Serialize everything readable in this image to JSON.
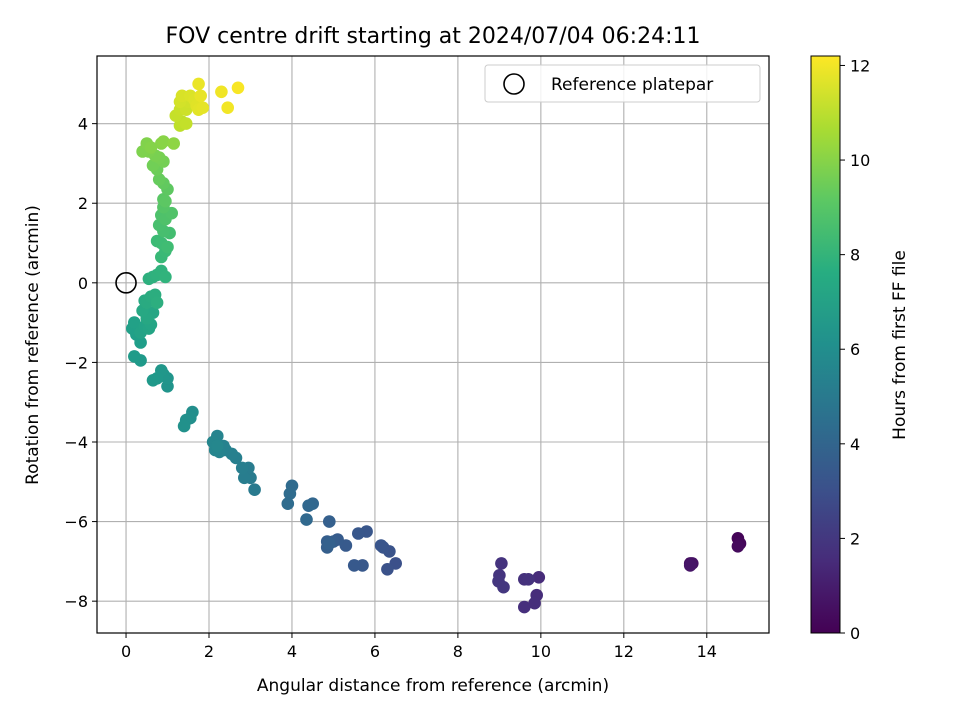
{
  "chart_data": {
    "type": "scatter",
    "title": "FOV centre drift starting at 2024/07/04 06:24:11",
    "xlabel": "Angular distance from reference (arcmin)",
    "ylabel": "Rotation from reference (arcmin)",
    "xlim": [
      -0.7,
      15.5
    ],
    "ylim": [
      -8.8,
      5.7
    ],
    "xticks": [
      0,
      2,
      4,
      6,
      8,
      10,
      12,
      14
    ],
    "yticks": [
      -8,
      -6,
      -4,
      -2,
      0,
      2,
      4
    ],
    "grid": true,
    "legend": {
      "placement": "top-right",
      "entries": [
        {
          "label": "Reference platepar",
          "marker": "open-circle"
        }
      ]
    },
    "reference": {
      "x": 0,
      "y": 0
    },
    "colorbar": {
      "label": "Hours from first FF file",
      "colormap": "viridis",
      "range": [
        0,
        12.2
      ],
      "ticks": [
        0,
        2,
        4,
        6,
        8,
        10,
        12
      ]
    },
    "points": [
      [
        14.75,
        -6.42,
        0.1
      ],
      [
        14.8,
        -6.55,
        0.2
      ],
      [
        14.75,
        -6.62,
        0.3
      ],
      [
        13.6,
        -7.05,
        0.5
      ],
      [
        13.65,
        -7.05,
        0.6
      ],
      [
        13.6,
        -7.1,
        0.7
      ],
      [
        9.95,
        -7.4,
        1.5
      ],
      [
        9.9,
        -7.85,
        1.55
      ],
      [
        9.85,
        -8.05,
        1.6
      ],
      [
        9.6,
        -8.15,
        1.65
      ],
      [
        9.6,
        -7.45,
        1.7
      ],
      [
        9.7,
        -7.45,
        1.75
      ],
      [
        9.05,
        -7.05,
        1.8
      ],
      [
        9.0,
        -7.35,
        1.85
      ],
      [
        8.98,
        -7.5,
        1.9
      ],
      [
        9.1,
        -7.65,
        1.95
      ],
      [
        6.5,
        -7.05,
        3.0
      ],
      [
        6.3,
        -7.2,
        3.05
      ],
      [
        6.35,
        -6.75,
        3.1
      ],
      [
        6.2,
        -6.65,
        3.15
      ],
      [
        6.15,
        -6.6,
        3.2
      ],
      [
        5.8,
        -6.25,
        3.25
      ],
      [
        5.6,
        -6.3,
        3.3
      ],
      [
        5.7,
        -7.1,
        3.35
      ],
      [
        5.5,
        -7.1,
        3.4
      ],
      [
        5.3,
        -6.6,
        3.45
      ],
      [
        5.1,
        -6.45,
        3.5
      ],
      [
        5.0,
        -6.5,
        3.55
      ],
      [
        4.85,
        -6.5,
        3.6
      ],
      [
        4.85,
        -6.65,
        3.65
      ],
      [
        4.9,
        -6.0,
        3.7
      ],
      [
        4.9,
        -6.55,
        3.75
      ],
      [
        4.5,
        -5.55,
        4.0
      ],
      [
        4.4,
        -5.6,
        4.05
      ],
      [
        4.35,
        -5.95,
        4.1
      ],
      [
        4.0,
        -5.1,
        4.2
      ],
      [
        3.95,
        -5.3,
        4.25
      ],
      [
        3.9,
        -5.55,
        4.3
      ],
      [
        3.1,
        -5.2,
        5.0
      ],
      [
        3.0,
        -4.9,
        5.05
      ],
      [
        2.95,
        -4.65,
        5.1
      ],
      [
        2.85,
        -4.9,
        5.15
      ],
      [
        2.8,
        -4.65,
        5.2
      ],
      [
        2.65,
        -4.4,
        5.25
      ],
      [
        2.55,
        -4.3,
        5.3
      ],
      [
        2.4,
        -4.2,
        5.35
      ],
      [
        2.35,
        -4.1,
        5.4
      ],
      [
        2.25,
        -4.25,
        5.45
      ],
      [
        2.2,
        -3.85,
        5.5
      ],
      [
        2.15,
        -4.2,
        5.55
      ],
      [
        2.1,
        -4.0,
        5.6
      ],
      [
        2.2,
        -4.1,
        5.65
      ],
      [
        1.6,
        -3.25,
        6.0
      ],
      [
        1.55,
        -3.4,
        6.05
      ],
      [
        1.45,
        -3.45,
        6.1
      ],
      [
        1.4,
        -3.6,
        6.15
      ],
      [
        1.0,
        -2.6,
        6.3
      ],
      [
        1.0,
        -2.4,
        6.35
      ],
      [
        0.9,
        -2.3,
        6.4
      ],
      [
        0.85,
        -2.2,
        6.45
      ],
      [
        0.75,
        -2.4,
        6.5
      ],
      [
        0.65,
        -2.45,
        6.55
      ],
      [
        0.35,
        -1.95,
        6.6
      ],
      [
        0.2,
        -1.85,
        6.65
      ],
      [
        0.35,
        -1.5,
        6.8
      ],
      [
        0.25,
        -1.3,
        6.85
      ],
      [
        0.15,
        -1.15,
        6.9
      ],
      [
        0.2,
        -1.0,
        6.95
      ],
      [
        0.35,
        -1.25,
        7.0
      ],
      [
        0.45,
        -1.1,
        7.05
      ],
      [
        0.55,
        -1.15,
        7.1
      ],
      [
        0.6,
        -1.05,
        7.15
      ],
      [
        0.65,
        -0.75,
        7.2
      ],
      [
        0.5,
        -0.9,
        7.25
      ],
      [
        0.4,
        -0.7,
        7.3
      ],
      [
        0.45,
        -0.45,
        7.4
      ],
      [
        0.5,
        -0.5,
        7.45
      ],
      [
        0.6,
        -0.35,
        7.5
      ],
      [
        0.7,
        -0.3,
        7.6
      ],
      [
        0.75,
        -0.5,
        7.65
      ],
      [
        0.55,
        0.1,
        7.7
      ],
      [
        0.65,
        0.15,
        7.75
      ],
      [
        0.75,
        0.2,
        7.8
      ],
      [
        0.85,
        0.3,
        7.85
      ],
      [
        0.95,
        0.15,
        7.9
      ],
      [
        0.85,
        0.65,
        8.2
      ],
      [
        0.95,
        0.8,
        8.25
      ],
      [
        0.75,
        1.05,
        8.3
      ],
      [
        0.85,
        1.0,
        8.35
      ],
      [
        1.0,
        0.9,
        8.4
      ],
      [
        1.05,
        1.25,
        8.5
      ],
      [
        0.9,
        1.3,
        8.55
      ],
      [
        0.8,
        1.45,
        8.6
      ],
      [
        0.85,
        1.7,
        8.7
      ],
      [
        0.95,
        1.6,
        8.75
      ],
      [
        1.1,
        1.75,
        8.8
      ],
      [
        0.9,
        1.9,
        8.9
      ],
      [
        0.9,
        2.1,
        9.0
      ],
      [
        0.95,
        2.05,
        9.05
      ],
      [
        1.0,
        2.35,
        9.1
      ],
      [
        0.9,
        2.5,
        9.2
      ],
      [
        0.8,
        2.6,
        9.3
      ],
      [
        0.75,
        2.85,
        9.45
      ],
      [
        0.65,
        2.95,
        9.55
      ],
      [
        0.9,
        3.05,
        9.6
      ],
      [
        0.8,
        3.15,
        9.65
      ],
      [
        0.7,
        3.2,
        9.7
      ],
      [
        0.55,
        3.3,
        9.75
      ],
      [
        0.4,
        3.3,
        9.8
      ],
      [
        0.5,
        3.5,
        9.85
      ],
      [
        0.6,
        3.4,
        9.9
      ],
      [
        0.85,
        3.5,
        9.95
      ],
      [
        0.9,
        3.55,
        10.0
      ],
      [
        1.15,
        3.5,
        10.1
      ],
      [
        1.3,
        3.95,
        11.0
      ],
      [
        1.35,
        4.05,
        11.05
      ],
      [
        1.45,
        4.0,
        11.1
      ],
      [
        1.2,
        4.2,
        11.15
      ],
      [
        1.3,
        4.35,
        11.2
      ],
      [
        1.45,
        4.35,
        11.3
      ],
      [
        1.5,
        4.55,
        11.35
      ],
      [
        1.3,
        4.55,
        11.4
      ],
      [
        1.35,
        4.7,
        11.5
      ],
      [
        1.55,
        4.7,
        11.55
      ],
      [
        1.65,
        4.6,
        11.6
      ],
      [
        1.7,
        4.45,
        11.65
      ],
      [
        1.75,
        4.35,
        11.7
      ],
      [
        1.85,
        4.4,
        11.75
      ],
      [
        1.8,
        4.7,
        11.8
      ],
      [
        1.75,
        5.0,
        11.85
      ],
      [
        2.3,
        4.8,
        11.95
      ],
      [
        2.45,
        4.4,
        12.0
      ],
      [
        2.7,
        4.9,
        12.1
      ]
    ]
  }
}
